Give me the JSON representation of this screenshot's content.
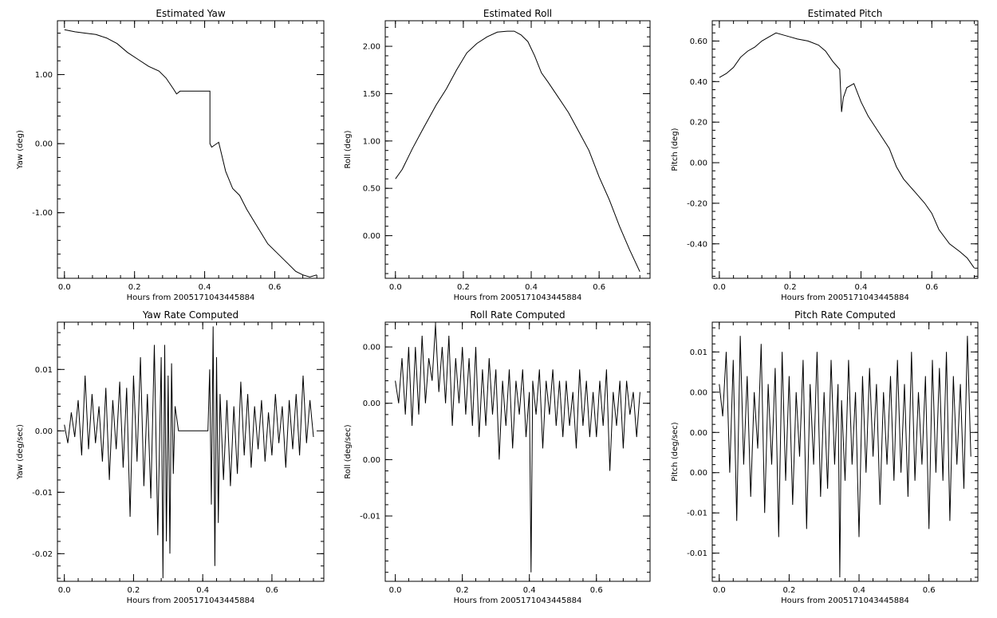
{
  "figure": {
    "colors": {
      "background": "#ffffff",
      "ink": "#000000"
    }
  },
  "chart_data": [
    {
      "type": "line",
      "title": "Estimated Yaw",
      "xlabel": "Hours from 2005171043445884",
      "ylabel": "Yaw (deg)",
      "xlim": [
        -0.02,
        0.74
      ],
      "ylim": [
        -1.95,
        1.78
      ],
      "xticks": [
        0.0,
        0.2,
        0.4,
        0.6
      ],
      "xtick_labels": [
        "0.0",
        "0.2",
        "0.4",
        "0.6"
      ],
      "yticks": [
        1.0,
        0.0,
        -1.0
      ],
      "ytick_labels": [
        "1.00",
        "0.00",
        "-1.00"
      ],
      "grid": false,
      "series": [
        {
          "x": [
            0.0,
            0.03,
            0.06,
            0.09,
            0.12,
            0.15,
            0.18,
            0.21,
            0.24,
            0.27,
            0.29,
            0.31,
            0.32,
            0.33,
            0.36,
            0.39,
            0.415,
            0.415,
            0.42,
            0.44,
            0.46,
            0.48,
            0.5,
            0.52,
            0.55,
            0.58,
            0.61,
            0.64,
            0.66,
            0.68,
            0.7,
            0.72
          ],
          "y": [
            1.65,
            1.62,
            1.6,
            1.58,
            1.53,
            1.45,
            1.32,
            1.22,
            1.12,
            1.05,
            0.95,
            0.8,
            0.72,
            0.76,
            0.76,
            0.76,
            0.76,
            0.0,
            -0.05,
            0.02,
            -0.4,
            -0.65,
            -0.75,
            -0.95,
            -1.2,
            -1.45,
            -1.6,
            -1.75,
            -1.85,
            -1.9,
            -1.93,
            -1.9
          ]
        }
      ]
    },
    {
      "type": "line",
      "title": "Estimated Roll",
      "xlabel": "Hours from 2005171043445884",
      "ylabel": "Roll (deg)",
      "xlim": [
        -0.03,
        0.75
      ],
      "ylim": [
        -0.45,
        2.27
      ],
      "xticks": [
        0.0,
        0.2,
        0.4,
        0.6
      ],
      "xtick_labels": [
        "0.0",
        "0.2",
        "0.4",
        "0.6"
      ],
      "yticks": [
        2.0,
        1.5,
        1.0,
        0.5,
        0.0
      ],
      "ytick_labels": [
        "2.00",
        "1.50",
        "1.00",
        "0.50",
        "0.00"
      ],
      "grid": false,
      "series": [
        {
          "x": [
            0.0,
            0.02,
            0.05,
            0.08,
            0.12,
            0.15,
            0.18,
            0.21,
            0.24,
            0.27,
            0.3,
            0.33,
            0.35,
            0.37,
            0.39,
            0.41,
            0.43,
            0.45,
            0.48,
            0.51,
            0.54,
            0.57,
            0.6,
            0.63,
            0.66,
            0.69,
            0.72
          ],
          "y": [
            0.6,
            0.7,
            0.92,
            1.12,
            1.38,
            1.55,
            1.75,
            1.93,
            2.03,
            2.1,
            2.15,
            2.16,
            2.16,
            2.12,
            2.05,
            1.9,
            1.72,
            1.62,
            1.46,
            1.3,
            1.1,
            0.9,
            0.62,
            0.38,
            0.1,
            -0.15,
            -0.38
          ]
        }
      ]
    },
    {
      "type": "line",
      "title": "Estimated Pitch",
      "xlabel": "Hours from 2005171043445884",
      "ylabel": "Pitch (deg)",
      "xlim": [
        -0.02,
        0.73
      ],
      "ylim": [
        -0.57,
        0.7
      ],
      "xticks": [
        0.0,
        0.2,
        0.4,
        0.6
      ],
      "xtick_labels": [
        "0.0",
        "0.2",
        "0.4",
        "0.6"
      ],
      "yticks": [
        0.6,
        0.4,
        0.2,
        0.0,
        -0.2,
        -0.4
      ],
      "ytick_labels": [
        "0.60",
        "0.40",
        "0.20",
        "0.00",
        "-0.20",
        "-0.40"
      ],
      "grid": false,
      "series": [
        {
          "x": [
            0.0,
            0.02,
            0.04,
            0.06,
            0.08,
            0.1,
            0.12,
            0.14,
            0.16,
            0.18,
            0.2,
            0.22,
            0.25,
            0.28,
            0.3,
            0.32,
            0.34,
            0.345,
            0.35,
            0.36,
            0.38,
            0.4,
            0.42,
            0.45,
            0.48,
            0.5,
            0.52,
            0.55,
            0.58,
            0.6,
            0.62,
            0.65,
            0.68,
            0.7,
            0.72
          ],
          "y": [
            0.42,
            0.44,
            0.47,
            0.52,
            0.55,
            0.57,
            0.6,
            0.62,
            0.64,
            0.63,
            0.62,
            0.61,
            0.6,
            0.58,
            0.55,
            0.5,
            0.46,
            0.25,
            0.32,
            0.37,
            0.39,
            0.3,
            0.23,
            0.15,
            0.07,
            -0.02,
            -0.08,
            -0.14,
            -0.2,
            -0.25,
            -0.33,
            -0.4,
            -0.44,
            -0.47,
            -0.52
          ]
        }
      ]
    },
    {
      "type": "line",
      "title": "Yaw Rate Computed",
      "xlabel": "Hours from 2005171043445884",
      "ylabel": "Yaw (deg/sec)",
      "xlim": [
        -0.02,
        0.75
      ],
      "ylim": [
        -0.0245,
        0.0177
      ],
      "xticks": [
        0.0,
        0.2,
        0.4,
        0.6
      ],
      "xtick_labels": [
        "0.0",
        "0.2",
        "0.4",
        "0.6"
      ],
      "yticks": [
        0.01,
        0.0,
        -0.01,
        -0.02
      ],
      "ytick_labels": [
        "0.01",
        "0.00",
        "-0.01",
        "-0.02"
      ],
      "grid": false,
      "series": [
        {
          "x": [
            0.0,
            0.01,
            0.02,
            0.03,
            0.04,
            0.05,
            0.06,
            0.07,
            0.08,
            0.09,
            0.1,
            0.11,
            0.12,
            0.13,
            0.14,
            0.15,
            0.16,
            0.17,
            0.18,
            0.19,
            0.2,
            0.21,
            0.22,
            0.23,
            0.24,
            0.25,
            0.26,
            0.27,
            0.28,
            0.285,
            0.29,
            0.295,
            0.3,
            0.305,
            0.31,
            0.315,
            0.32,
            0.33,
            0.34,
            0.37,
            0.4,
            0.415,
            0.42,
            0.425,
            0.43,
            0.435,
            0.44,
            0.445,
            0.45,
            0.46,
            0.47,
            0.48,
            0.49,
            0.5,
            0.51,
            0.52,
            0.53,
            0.54,
            0.55,
            0.56,
            0.57,
            0.58,
            0.59,
            0.6,
            0.61,
            0.62,
            0.63,
            0.64,
            0.65,
            0.66,
            0.67,
            0.68,
            0.69,
            0.7,
            0.71,
            0.72
          ],
          "y": [
            0.001,
            -0.002,
            0.003,
            -0.001,
            0.005,
            -0.004,
            0.009,
            -0.003,
            0.006,
            -0.002,
            0.004,
            -0.005,
            0.007,
            -0.008,
            0.005,
            -0.003,
            0.008,
            -0.006,
            0.007,
            -0.014,
            0.009,
            -0.005,
            0.012,
            -0.009,
            0.006,
            -0.011,
            0.014,
            -0.017,
            0.012,
            -0.024,
            0.014,
            -0.018,
            0.009,
            -0.02,
            0.011,
            -0.007,
            0.004,
            0.0,
            0.0,
            0.0,
            0.0,
            0.0,
            0.01,
            -0.012,
            0.017,
            -0.022,
            0.012,
            -0.015,
            0.006,
            -0.008,
            0.005,
            -0.009,
            0.004,
            -0.007,
            0.008,
            -0.004,
            0.006,
            -0.006,
            0.004,
            -0.003,
            0.005,
            -0.005,
            0.003,
            -0.004,
            0.006,
            -0.002,
            0.004,
            -0.006,
            0.005,
            -0.003,
            0.006,
            -0.004,
            0.009,
            -0.002,
            0.005,
            -0.001
          ]
        }
      ]
    },
    {
      "type": "line",
      "title": "Roll Rate Computed",
      "xlabel": "Hours from 2005171043445884",
      "ylabel": "Roll (deg/sec)",
      "xlim": [
        -0.03,
        0.76
      ],
      "ylim": [
        -0.0158,
        0.0072
      ],
      "xticks": [
        0.0,
        0.2,
        0.4,
        0.6
      ],
      "xtick_labels": [
        "0.0",
        "0.2",
        "0.4",
        "0.6"
      ],
      "yticks": [
        0.005,
        0.0,
        -0.005,
        -0.01
      ],
      "ytick_labels": [
        "0.00",
        "0.00",
        "0.00",
        "-0.01"
      ],
      "grid": false,
      "series": [
        {
          "x": [
            0.0,
            0.01,
            0.02,
            0.03,
            0.04,
            0.05,
            0.06,
            0.07,
            0.08,
            0.09,
            0.1,
            0.11,
            0.12,
            0.13,
            0.14,
            0.15,
            0.16,
            0.17,
            0.18,
            0.19,
            0.2,
            0.21,
            0.22,
            0.23,
            0.24,
            0.25,
            0.26,
            0.27,
            0.28,
            0.29,
            0.3,
            0.31,
            0.32,
            0.33,
            0.34,
            0.35,
            0.36,
            0.37,
            0.38,
            0.39,
            0.4,
            0.405,
            0.41,
            0.42,
            0.43,
            0.44,
            0.45,
            0.46,
            0.47,
            0.48,
            0.49,
            0.5,
            0.51,
            0.52,
            0.53,
            0.54,
            0.55,
            0.56,
            0.57,
            0.58,
            0.59,
            0.6,
            0.61,
            0.62,
            0.63,
            0.64,
            0.65,
            0.66,
            0.67,
            0.68,
            0.69,
            0.7,
            0.71,
            0.72,
            0.73
          ],
          "y": [
            0.002,
            0.0,
            0.004,
            -0.001,
            0.005,
            -0.002,
            0.005,
            -0.001,
            0.006,
            0.0,
            0.004,
            0.002,
            0.007,
            0.001,
            0.005,
            0.0,
            0.006,
            -0.002,
            0.004,
            0.0,
            0.005,
            -0.001,
            0.004,
            -0.002,
            0.005,
            -0.003,
            0.003,
            -0.002,
            0.004,
            -0.001,
            0.003,
            -0.005,
            0.002,
            -0.002,
            0.003,
            -0.004,
            0.002,
            -0.001,
            0.003,
            -0.003,
            0.001,
            -0.015,
            0.002,
            -0.001,
            0.003,
            -0.004,
            0.002,
            -0.001,
            0.003,
            -0.002,
            0.002,
            -0.003,
            0.002,
            -0.002,
            0.001,
            -0.004,
            0.003,
            -0.002,
            0.002,
            -0.003,
            0.001,
            -0.003,
            0.002,
            -0.002,
            0.003,
            -0.006,
            0.001,
            -0.002,
            0.002,
            -0.004,
            0.002,
            -0.001,
            0.001,
            -0.003,
            0.001
          ]
        }
      ]
    },
    {
      "type": "line",
      "title": "Pitch Rate Computed",
      "xlabel": "Hours from 2005171043445884",
      "ylabel": "Pitch (deg/sec)",
      "xlim": [
        -0.02,
        0.74
      ],
      "ylim": [
        -0.0185,
        0.0137
      ],
      "xticks": [
        0.0,
        0.2,
        0.4,
        0.6
      ],
      "xtick_labels": [
        "0.0",
        "0.2",
        "0.4",
        "0.6"
      ],
      "yticks": [
        0.01,
        0.005,
        0.0,
        -0.005,
        -0.01,
        -0.015
      ],
      "ytick_labels": [
        "0.01",
        "0.00",
        "0.00",
        "0.00",
        "-0.01",
        "-0.01"
      ],
      "grid": false,
      "series": [
        {
          "x": [
            0.0,
            0.01,
            0.02,
            0.03,
            0.04,
            0.05,
            0.06,
            0.07,
            0.08,
            0.09,
            0.1,
            0.11,
            0.12,
            0.13,
            0.14,
            0.15,
            0.16,
            0.17,
            0.18,
            0.19,
            0.2,
            0.21,
            0.22,
            0.23,
            0.24,
            0.25,
            0.26,
            0.27,
            0.28,
            0.29,
            0.3,
            0.31,
            0.32,
            0.33,
            0.34,
            0.345,
            0.35,
            0.36,
            0.37,
            0.38,
            0.39,
            0.4,
            0.41,
            0.42,
            0.43,
            0.44,
            0.45,
            0.46,
            0.47,
            0.48,
            0.49,
            0.5,
            0.51,
            0.52,
            0.53,
            0.54,
            0.55,
            0.56,
            0.57,
            0.58,
            0.59,
            0.6,
            0.61,
            0.62,
            0.63,
            0.64,
            0.65,
            0.66,
            0.67,
            0.68,
            0.69,
            0.7,
            0.71,
            0.72
          ],
          "y": [
            0.006,
            0.002,
            0.01,
            -0.005,
            0.009,
            -0.011,
            0.012,
            -0.004,
            0.007,
            -0.008,
            0.005,
            -0.002,
            0.011,
            -0.01,
            0.006,
            -0.004,
            0.008,
            -0.013,
            0.01,
            -0.006,
            0.007,
            -0.009,
            0.005,
            -0.003,
            0.009,
            -0.012,
            0.006,
            -0.004,
            0.01,
            -0.008,
            0.005,
            -0.007,
            0.009,
            -0.004,
            0.006,
            -0.018,
            0.004,
            -0.006,
            0.009,
            -0.004,
            0.005,
            -0.013,
            0.007,
            -0.005,
            0.008,
            -0.003,
            0.006,
            -0.009,
            0.005,
            -0.004,
            0.007,
            -0.006,
            0.009,
            -0.005,
            0.006,
            -0.008,
            0.01,
            -0.006,
            0.005,
            -0.004,
            0.007,
            -0.012,
            0.009,
            -0.005,
            0.008,
            -0.006,
            0.01,
            -0.011,
            0.007,
            -0.004,
            0.006,
            -0.007,
            0.012,
            -0.003
          ]
        }
      ]
    }
  ]
}
